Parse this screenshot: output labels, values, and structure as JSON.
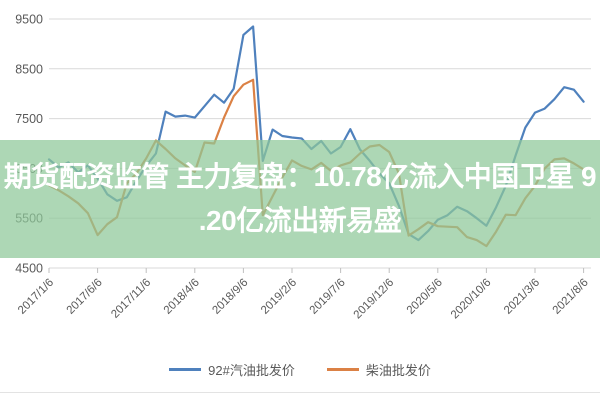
{
  "overlay": {
    "line1": "期货配资监管 主力复盘：10.78亿流入中国卫星 9",
    "line2": ".20亿流出新易盛",
    "full_text": "期货配资监管 主力复盘：10.78亿流入中国卫星 9.20亿流出新易盛",
    "band_color": "rgba(141,199,152,0.72)",
    "text_color": "#ffffff"
  },
  "chart_data": {
    "type": "line",
    "title": "",
    "xlabel": "",
    "ylabel": "",
    "ylim": [
      4500,
      9500
    ],
    "grid": "horizontal",
    "gridline_color": "#d9d9d9",
    "axis_text_color": "#595959",
    "legend_position": "bottom",
    "y_tick_labels": [
      "9500",
      "8500",
      "7500",
      "6500",
      "5500",
      "4500"
    ],
    "x_tick_labels": [
      "2017/1/6",
      "2017/6/6",
      "2017/11/6",
      "2018/4/6",
      "2018/9/6",
      "2019/2/6",
      "2019/7/6",
      "2019/12/6",
      "2020/5/6",
      "2020/10/6",
      "2021/3/6",
      "2021/8/6"
    ],
    "x_tick_month_interval": 5,
    "x_start": "2017/1",
    "x_end": "2021/8",
    "series": [
      {
        "name": "92#汽油批发价",
        "color": "#4f81bd",
        "values": [
          6680,
          6520,
          6620,
          6420,
          6560,
          6300,
          5980,
          5850,
          5920,
          6250,
          6550,
          6800,
          7640,
          7540,
          7560,
          7520,
          7750,
          7980,
          7820,
          8100,
          9180,
          9350,
          6650,
          7280,
          7150,
          7120,
          7100,
          6890,
          7050,
          6800,
          6930,
          7290,
          6880,
          6650,
          6400,
          6200,
          5750,
          5180,
          5060,
          5240,
          5470,
          5560,
          5730,
          5640,
          5500,
          5350,
          5720,
          6150,
          6760,
          7320,
          7620,
          7700,
          7890,
          8130,
          8080,
          7840
        ]
      },
      {
        "name": "柴油批发价",
        "color": "#db8145",
        "values": [
          6160,
          6060,
          5940,
          5800,
          5600,
          5160,
          5380,
          5520,
          6200,
          6400,
          6700,
          7060,
          6890,
          6700,
          6560,
          6430,
          7020,
          7000,
          7520,
          7950,
          8180,
          8280,
          5560,
          5940,
          6320,
          6660,
          6550,
          6480,
          6610,
          6450,
          6560,
          6620,
          6800,
          6940,
          6970,
          6830,
          6400,
          5150,
          5280,
          5420,
          5340,
          5330,
          5320,
          5120,
          5060,
          4940,
          5230,
          5570,
          5560,
          5900,
          6150,
          6500,
          6680,
          6700,
          6600,
          6480
        ]
      }
    ]
  }
}
